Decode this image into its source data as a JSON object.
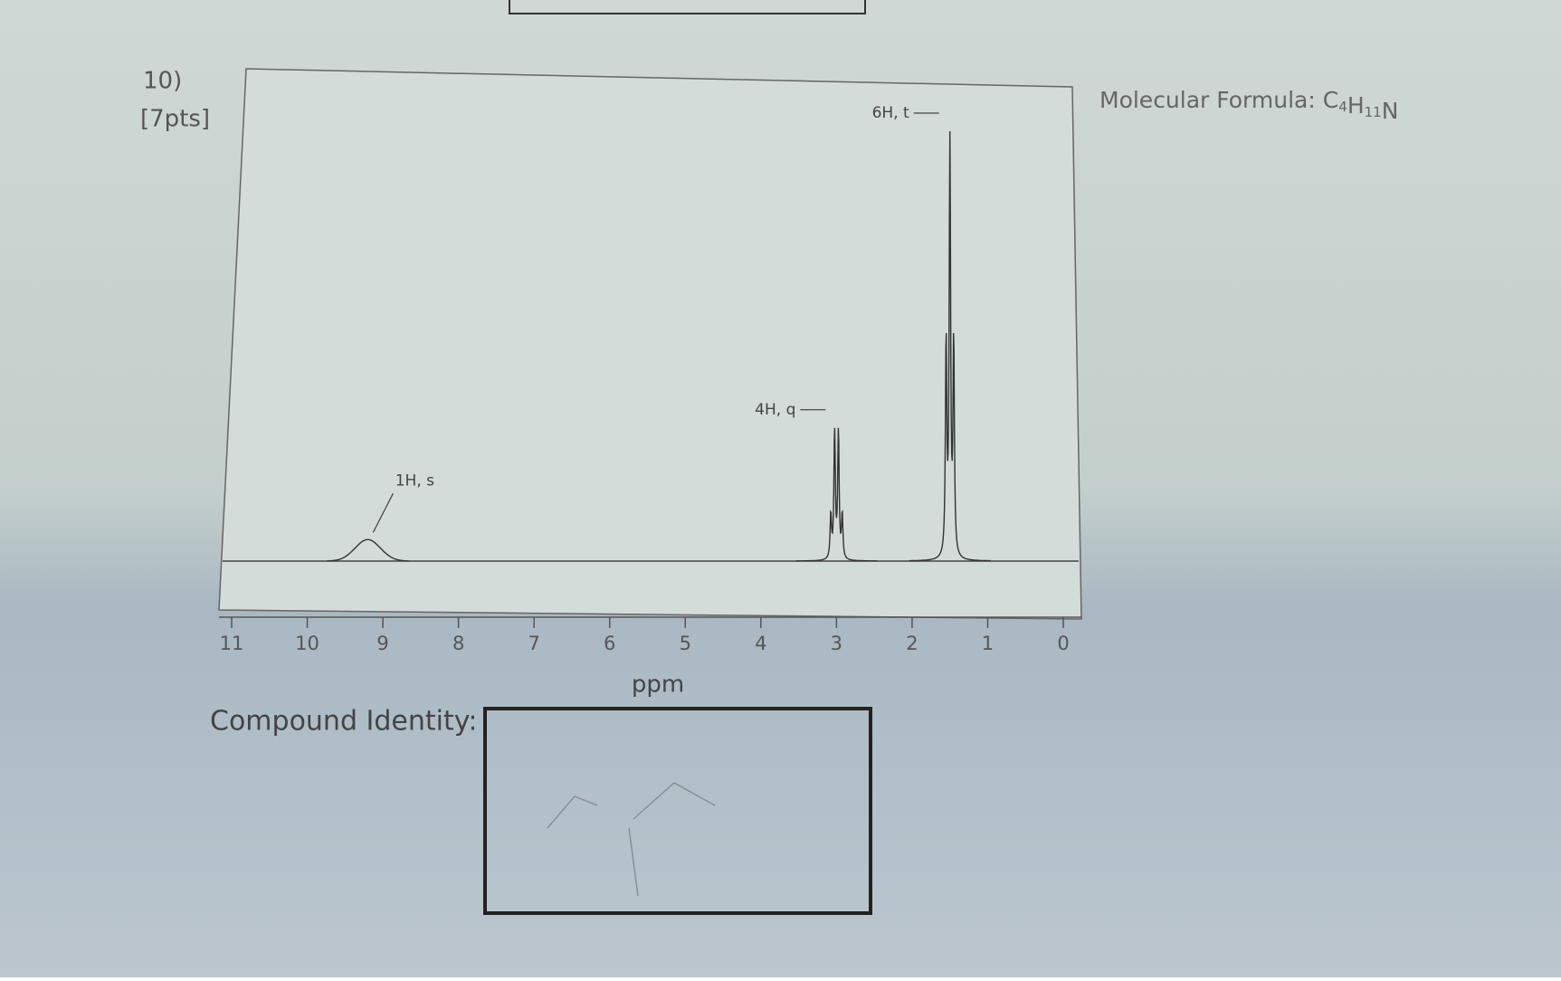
{
  "question": {
    "number": "10)",
    "points": "[7pts]"
  },
  "molecular_formula": {
    "label": "Molecular Formula:",
    "atoms": [
      [
        "C",
        "4"
      ],
      [
        "H",
        "11"
      ],
      [
        "N"
      ]
    ]
  },
  "spectrum": {
    "type": "nmr",
    "xlim": [
      11,
      0
    ],
    "xticks": [
      11,
      10,
      9,
      8,
      7,
      6,
      5,
      4,
      3,
      2,
      1,
      0
    ],
    "x_label": "ppm",
    "peaks": [
      {
        "ppm": 9.2,
        "height": 5,
        "label": "1H, s"
      },
      {
        "ppm": 3.0,
        "height": 31,
        "label": "4H, q"
      },
      {
        "ppm": 1.5,
        "height": 100,
        "label": "6H, t"
      }
    ]
  },
  "answer": {
    "label": "Compound Identity:"
  }
}
